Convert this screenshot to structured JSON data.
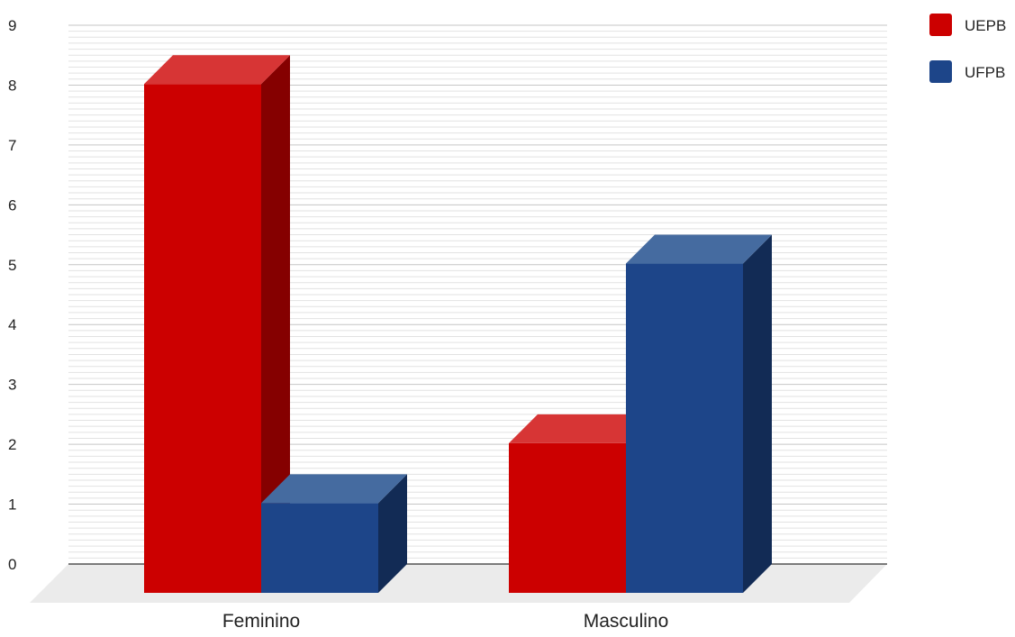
{
  "chart_data": {
    "type": "bar",
    "style": "3d",
    "categories": [
      "Feminino",
      "Masculino"
    ],
    "series": [
      {
        "name": "UEPB",
        "values": [
          8.5,
          2.5
        ],
        "color": "#cc0000",
        "top_color": "#d73535",
        "side_color": "#850000"
      },
      {
        "name": "UFPB",
        "values": [
          1.5,
          5.5
        ],
        "color": "#1d4589",
        "top_color": "#456ba0",
        "side_color": "#122b55"
      }
    ],
    "title": "",
    "xlabel": "",
    "ylabel": "",
    "ylim": [
      0,
      9
    ],
    "yticks": [
      "0",
      "1",
      "2",
      "3",
      "4",
      "5",
      "6",
      "7",
      "8",
      "9"
    ],
    "grid": true,
    "legend_position": "top-right"
  }
}
